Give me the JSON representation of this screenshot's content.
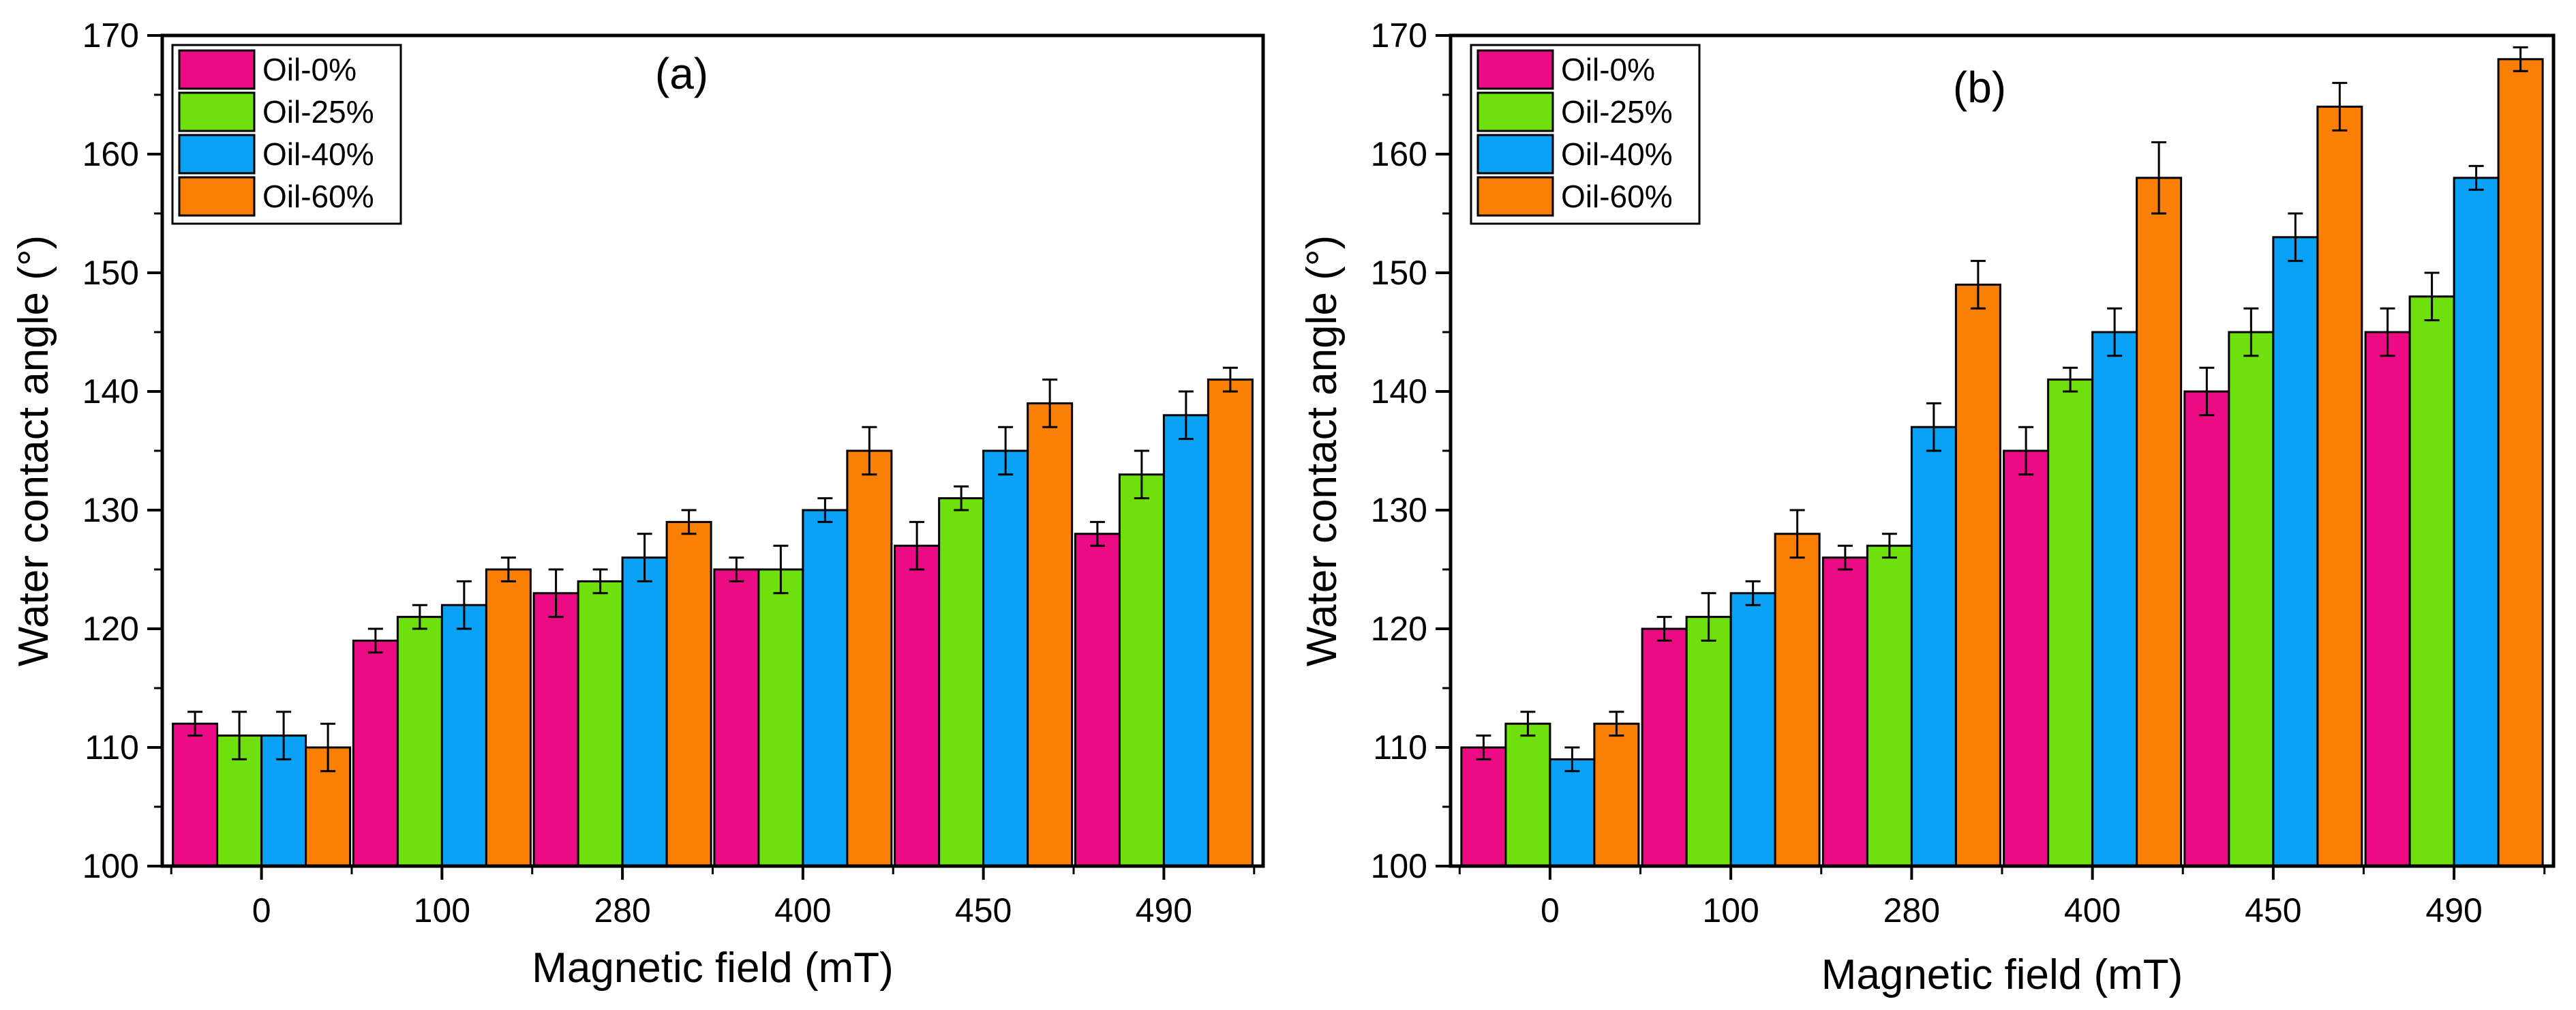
{
  "chart_data": [
    {
      "type": "bar",
      "title": "",
      "panel_label": "(a)",
      "xlabel": "Magnetic field (mT)",
      "ylabel": "Water contact angle (°)",
      "ylim": [
        100,
        170
      ],
      "yticks": [
        100,
        110,
        120,
        130,
        140,
        150,
        160,
        170
      ],
      "categories": [
        "0",
        "100",
        "280",
        "400",
        "450",
        "490"
      ],
      "legend_position": "top-left",
      "series": [
        {
          "name": "Oil-0%",
          "color": "#ec0b85",
          "values": [
            112,
            119,
            123,
            125,
            127,
            128
          ],
          "errors": [
            1,
            1,
            2,
            1,
            2,
            1
          ]
        },
        {
          "name": "Oil-25%",
          "color": "#6ee00b",
          "values": [
            111,
            121,
            124,
            125,
            131,
            133
          ],
          "errors": [
            2,
            1,
            1,
            2,
            1,
            2
          ]
        },
        {
          "name": "Oil-40%",
          "color": "#0aa2f5",
          "values": [
            111,
            122,
            126,
            130,
            135,
            138
          ],
          "errors": [
            2,
            2,
            2,
            1,
            2,
            2
          ]
        },
        {
          "name": "Oil-60%",
          "color": "#fb7f04",
          "values": [
            110,
            125,
            129,
            135,
            139,
            141
          ],
          "errors": [
            2,
            1,
            1,
            2,
            2,
            1
          ]
        }
      ]
    },
    {
      "type": "bar",
      "title": "",
      "panel_label": "(b)",
      "xlabel": "Magnetic field (mT)",
      "ylabel": "Water contact angle (°)",
      "ylim": [
        100,
        170
      ],
      "yticks": [
        100,
        110,
        120,
        130,
        140,
        150,
        160,
        170
      ],
      "categories": [
        "0",
        "100",
        "280",
        "400",
        "450",
        "490"
      ],
      "legend_position": "top-left",
      "series": [
        {
          "name": "Oil-0%",
          "color": "#ec0b85",
          "values": [
            110,
            120,
            126,
            135,
            140,
            145
          ],
          "errors": [
            1,
            1,
            1,
            2,
            2,
            2
          ]
        },
        {
          "name": "Oil-25%",
          "color": "#6ee00b",
          "values": [
            112,
            121,
            127,
            141,
            145,
            148
          ],
          "errors": [
            1,
            2,
            1,
            1,
            2,
            2
          ]
        },
        {
          "name": "Oil-40%",
          "color": "#0aa2f5",
          "values": [
            109,
            123,
            137,
            145,
            153,
            158
          ],
          "errors": [
            1,
            1,
            2,
            2,
            2,
            1
          ]
        },
        {
          "name": "Oil-60%",
          "color": "#fb7f04",
          "values": [
            112,
            128,
            149,
            158,
            164,
            168
          ],
          "errors": [
            1,
            2,
            2,
            3,
            2,
            1
          ]
        }
      ]
    }
  ]
}
